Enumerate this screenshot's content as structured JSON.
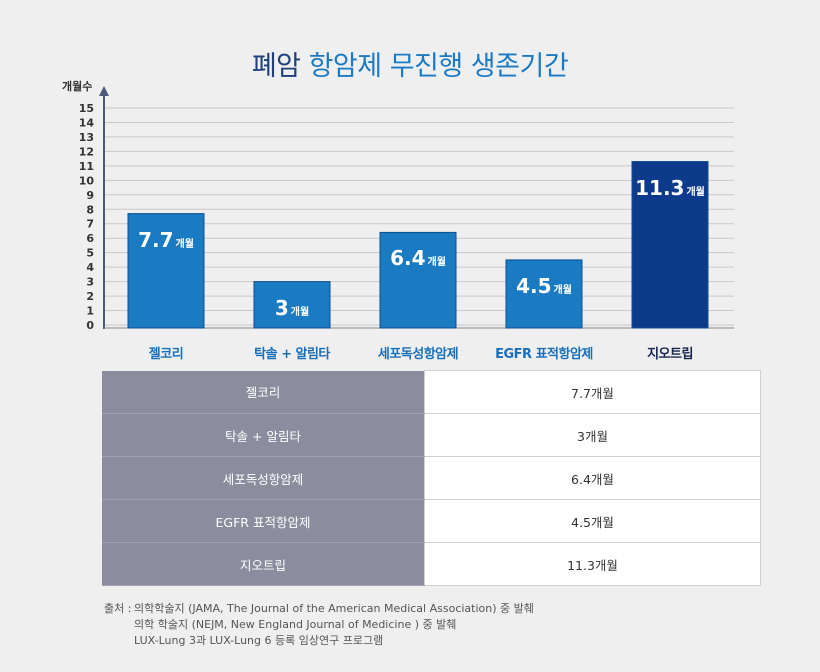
{
  "title": {
    "part1": "폐암",
    "part2": "항암제 무진행 생존기간"
  },
  "chart_data": {
    "type": "bar",
    "ylabel": "개월수",
    "ylim": [
      0,
      15
    ],
    "yticks": [
      0,
      1,
      2,
      3,
      4,
      5,
      6,
      7,
      8,
      9,
      10,
      11,
      12,
      13,
      14,
      15
    ],
    "categories": [
      "젤코리",
      "탁솔 + 알림타",
      "세포독성항암제",
      "EGFR 표적항암제",
      "지오트립"
    ],
    "values": [
      7.7,
      3,
      6.4,
      4.5,
      11.3
    ],
    "value_labels": [
      "7.7",
      "3",
      "6.4",
      "4.5",
      "11.3"
    ],
    "unit": "개월",
    "colors": [
      "#1a7ac2",
      "#1a7ac2",
      "#1a7ac2",
      "#1a7ac2",
      "#0e3a8c"
    ],
    "grid": true
  },
  "table": {
    "rows": [
      {
        "name": "젤코리",
        "value": "7.7개월"
      },
      {
        "name": "탁솔 + 알림타",
        "value": "3개월"
      },
      {
        "name": "세포독성항암제",
        "value": "6.4개월"
      },
      {
        "name": "EGFR 표적항암제",
        "value": "4.5개월"
      },
      {
        "name": "지오트립",
        "value": "11.3개월"
      }
    ]
  },
  "source": {
    "label": "출처 :",
    "line1": "의학학술지 (JAMA, The Journal of the American Medical Association) 중 발췌",
    "line2": "의학 학술지 (NEJM, New England Journal of Medicine ) 중 발췌",
    "line3": "LUX-Lung 3과 LUX-Lung 6 등록 임상연구 프로그램"
  }
}
